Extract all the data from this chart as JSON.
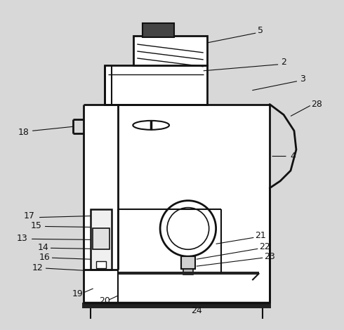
{
  "background_color": "#d8d8d8",
  "line_color": "#111111",
  "figsize": [
    4.9,
    4.7
  ],
  "dpi": 100
}
